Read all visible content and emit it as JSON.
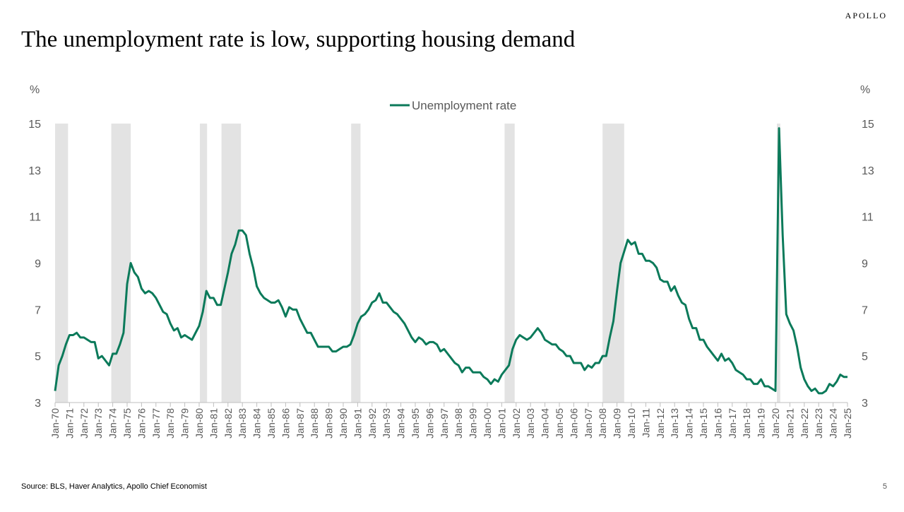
{
  "header": {
    "brand": "APOLLO",
    "title": "The unemployment rate is low, supporting housing demand"
  },
  "chart_data": {
    "type": "line",
    "ylabel": "%",
    "y2label": "%",
    "ylim": [
      3,
      15
    ],
    "yticks": [
      3,
      5,
      7,
      9,
      11,
      13,
      15
    ],
    "y2lim": [
      3,
      15
    ],
    "y2ticks": [
      3,
      5,
      7,
      9,
      11,
      13,
      15
    ],
    "xlim": [
      1970,
      2025
    ],
    "xticks": [
      {
        "value": 1970,
        "label": "Jan-70"
      },
      {
        "value": 1971,
        "label": "Jan-71"
      },
      {
        "value": 1972,
        "label": "Jan-72"
      },
      {
        "value": 1973,
        "label": "Jan-73"
      },
      {
        "value": 1974,
        "label": "Jan-74"
      },
      {
        "value": 1975,
        "label": "Jan-75"
      },
      {
        "value": 1976,
        "label": "Jan-76"
      },
      {
        "value": 1977,
        "label": "Jan-77"
      },
      {
        "value": 1978,
        "label": "Jan-78"
      },
      {
        "value": 1979,
        "label": "Jan-79"
      },
      {
        "value": 1980,
        "label": "Jan-80"
      },
      {
        "value": 1981,
        "label": "Jan-81"
      },
      {
        "value": 1982,
        "label": "Jan-82"
      },
      {
        "value": 1983,
        "label": "Jan-83"
      },
      {
        "value": 1984,
        "label": "Jan-84"
      },
      {
        "value": 1985,
        "label": "Jan-85"
      },
      {
        "value": 1986,
        "label": "Jan-86"
      },
      {
        "value": 1987,
        "label": "Jan-87"
      },
      {
        "value": 1988,
        "label": "Jan-88"
      },
      {
        "value": 1989,
        "label": "Jan-89"
      },
      {
        "value": 1990,
        "label": "Jan-90"
      },
      {
        "value": 1991,
        "label": "Jan-91"
      },
      {
        "value": 1992,
        "label": "Jan-92"
      },
      {
        "value": 1993,
        "label": "Jan-93"
      },
      {
        "value": 1994,
        "label": "Jan-94"
      },
      {
        "value": 1995,
        "label": "Jan-95"
      },
      {
        "value": 1996,
        "label": "Jan-96"
      },
      {
        "value": 1997,
        "label": "Jan-97"
      },
      {
        "value": 1998,
        "label": "Jan-98"
      },
      {
        "value": 1999,
        "label": "Jan-99"
      },
      {
        "value": 2000,
        "label": "Jan-00"
      },
      {
        "value": 2001,
        "label": "Jan-01"
      },
      {
        "value": 2002,
        "label": "Jan-02"
      },
      {
        "value": 2003,
        "label": "Jan-03"
      },
      {
        "value": 2004,
        "label": "Jan-04"
      },
      {
        "value": 2005,
        "label": "Jan-05"
      },
      {
        "value": 2006,
        "label": "Jan-06"
      },
      {
        "value": 2007,
        "label": "Jan-07"
      },
      {
        "value": 2008,
        "label": "Jan-08"
      },
      {
        "value": 2009,
        "label": "Jan-09"
      },
      {
        "value": 2010,
        "label": "Jan-10"
      },
      {
        "value": 2011,
        "label": "Jan-11"
      },
      {
        "value": 2012,
        "label": "Jan-12"
      },
      {
        "value": 2013,
        "label": "Jan-13"
      },
      {
        "value": 2014,
        "label": "Jan-14"
      },
      {
        "value": 2015,
        "label": "Jan-15"
      },
      {
        "value": 2016,
        "label": "Jan-16"
      },
      {
        "value": 2017,
        "label": "Jan-17"
      },
      {
        "value": 2018,
        "label": "Jan-18"
      },
      {
        "value": 2019,
        "label": "Jan-19"
      },
      {
        "value": 2020,
        "label": "Jan-20"
      },
      {
        "value": 2021,
        "label": "Jan-21"
      },
      {
        "value": 2022,
        "label": "Jan-22"
      },
      {
        "value": 2023,
        "label": "Jan-23"
      },
      {
        "value": 2024,
        "label": "Jan-24"
      },
      {
        "value": 2025,
        "label": "Jan-25"
      }
    ],
    "recessions": [
      [
        1970,
        1970.9
      ],
      [
        1973.9,
        1975.25
      ],
      [
        1980.05,
        1980.55
      ],
      [
        1981.55,
        1982.9
      ],
      [
        1990.55,
        1991.2
      ],
      [
        2001.2,
        2001.9
      ],
      [
        2008,
        2009.5
      ],
      [
        2020.1,
        2020.33
      ]
    ],
    "recession_color": "#e3e3e3",
    "x": [
      1970,
      1970.25,
      1970.5,
      1970.75,
      1971,
      1971.25,
      1971.5,
      1971.75,
      1972,
      1972.25,
      1972.5,
      1972.75,
      1973,
      1973.25,
      1973.5,
      1973.75,
      1974,
      1974.25,
      1974.5,
      1974.75,
      1975,
      1975.25,
      1975.5,
      1975.75,
      1976,
      1976.25,
      1976.5,
      1976.75,
      1977,
      1977.25,
      1977.5,
      1977.75,
      1978,
      1978.25,
      1978.5,
      1978.75,
      1979,
      1979.25,
      1979.5,
      1979.75,
      1980,
      1980.25,
      1980.5,
      1980.75,
      1981,
      1981.25,
      1981.5,
      1981.75,
      1982,
      1982.25,
      1982.5,
      1982.75,
      1983,
      1983.25,
      1983.5,
      1983.75,
      1984,
      1984.25,
      1984.5,
      1984.75,
      1985,
      1985.25,
      1985.5,
      1985.75,
      1986,
      1986.25,
      1986.5,
      1986.75,
      1987,
      1987.25,
      1987.5,
      1987.75,
      1988,
      1988.25,
      1988.5,
      1988.75,
      1989,
      1989.25,
      1989.5,
      1989.75,
      1990,
      1990.25,
      1990.5,
      1990.75,
      1991,
      1991.25,
      1991.5,
      1991.75,
      1992,
      1992.25,
      1992.5,
      1992.75,
      1993,
      1993.25,
      1993.5,
      1993.75,
      1994,
      1994.25,
      1994.5,
      1994.75,
      1995,
      1995.25,
      1995.5,
      1995.75,
      1996,
      1996.25,
      1996.5,
      1996.75,
      1997,
      1997.25,
      1997.5,
      1997.75,
      1998,
      1998.25,
      1998.5,
      1998.75,
      1999,
      1999.25,
      1999.5,
      1999.75,
      2000,
      2000.25,
      2000.5,
      2000.75,
      2001,
      2001.25,
      2001.5,
      2001.75,
      2002,
      2002.25,
      2002.5,
      2002.75,
      2003,
      2003.25,
      2003.5,
      2003.75,
      2004,
      2004.25,
      2004.5,
      2004.75,
      2005,
      2005.25,
      2005.5,
      2005.75,
      2006,
      2006.25,
      2006.5,
      2006.75,
      2007,
      2007.25,
      2007.5,
      2007.75,
      2008,
      2008.25,
      2008.5,
      2008.75,
      2009,
      2009.25,
      2009.5,
      2009.75,
      2010,
      2010.25,
      2010.5,
      2010.75,
      2011,
      2011.25,
      2011.5,
      2011.75,
      2012,
      2012.25,
      2012.5,
      2012.75,
      2013,
      2013.25,
      2013.5,
      2013.75,
      2014,
      2014.25,
      2014.5,
      2014.75,
      2015,
      2015.25,
      2015.5,
      2015.75,
      2016,
      2016.25,
      2016.5,
      2016.75,
      2017,
      2017.25,
      2017.5,
      2017.75,
      2018,
      2018.25,
      2018.5,
      2018.75,
      2019,
      2019.25,
      2019.5,
      2019.75,
      2020,
      2020.25,
      2020.5,
      2020.75,
      2021,
      2021.25,
      2021.5,
      2021.75,
      2022,
      2022.25,
      2022.5,
      2022.75,
      2023,
      2023.25,
      2023.5,
      2023.75,
      2024,
      2024.25,
      2024.5,
      2024.75,
      2025
    ],
    "series": [
      {
        "name": "Unemployment rate",
        "color": "#0b7a5a",
        "values": [
          3.5,
          4.6,
          5.0,
          5.5,
          5.9,
          5.9,
          6.0,
          5.8,
          5.8,
          5.7,
          5.6,
          5.6,
          4.9,
          5.0,
          4.8,
          4.6,
          5.1,
          5.1,
          5.5,
          6.0,
          8.1,
          9.0,
          8.6,
          8.4,
          7.9,
          7.7,
          7.8,
          7.7,
          7.5,
          7.2,
          6.9,
          6.8,
          6.4,
          6.1,
          6.2,
          5.8,
          5.9,
          5.8,
          5.7,
          6.0,
          6.3,
          6.9,
          7.8,
          7.5,
          7.5,
          7.2,
          7.2,
          7.9,
          8.6,
          9.4,
          9.8,
          10.4,
          10.4,
          10.2,
          9.4,
          8.8,
          8.0,
          7.7,
          7.5,
          7.4,
          7.3,
          7.3,
          7.4,
          7.1,
          6.7,
          7.1,
          7.0,
          7.0,
          6.6,
          6.3,
          6.0,
          6.0,
          5.7,
          5.4,
          5.4,
          5.4,
          5.4,
          5.2,
          5.2,
          5.3,
          5.4,
          5.4,
          5.5,
          5.9,
          6.4,
          6.7,
          6.8,
          7.0,
          7.3,
          7.4,
          7.7,
          7.3,
          7.3,
          7.1,
          6.9,
          6.8,
          6.6,
          6.4,
          6.1,
          5.8,
          5.6,
          5.8,
          5.7,
          5.5,
          5.6,
          5.6,
          5.5,
          5.2,
          5.3,
          5.1,
          4.9,
          4.7,
          4.6,
          4.3,
          4.5,
          4.5,
          4.3,
          4.3,
          4.3,
          4.1,
          4.0,
          3.8,
          4.0,
          3.9,
          4.2,
          4.4,
          4.6,
          5.3,
          5.7,
          5.9,
          5.8,
          5.7,
          5.8,
          6.0,
          6.2,
          6.0,
          5.7,
          5.6,
          5.5,
          5.5,
          5.3,
          5.2,
          5.0,
          5.0,
          4.7,
          4.7,
          4.7,
          4.4,
          4.6,
          4.5,
          4.7,
          4.7,
          5.0,
          5.0,
          5.8,
          6.5,
          7.8,
          9.0,
          9.5,
          10.0,
          9.8,
          9.9,
          9.4,
          9.4,
          9.1,
          9.1,
          9.0,
          8.8,
          8.3,
          8.2,
          8.2,
          7.8,
          8.0,
          7.6,
          7.3,
          7.2,
          6.6,
          6.2,
          6.2,
          5.7,
          5.7,
          5.4,
          5.2,
          5.0,
          4.8,
          5.1,
          4.8,
          4.9,
          4.7,
          4.4,
          4.3,
          4.2,
          4.0,
          4.0,
          3.8,
          3.8,
          4.0,
          3.7,
          3.7,
          3.6,
          3.5,
          14.8,
          10.2,
          6.8,
          6.4,
          6.1,
          5.4,
          4.5,
          4.0,
          3.7,
          3.5,
          3.6,
          3.4,
          3.4,
          3.5,
          3.8,
          3.7,
          3.9,
          4.2,
          4.1,
          4.1
        ]
      }
    ]
  },
  "footer": {
    "source": "Source: BLS, Haver Analytics, Apollo Chief Economist",
    "page": "5"
  }
}
